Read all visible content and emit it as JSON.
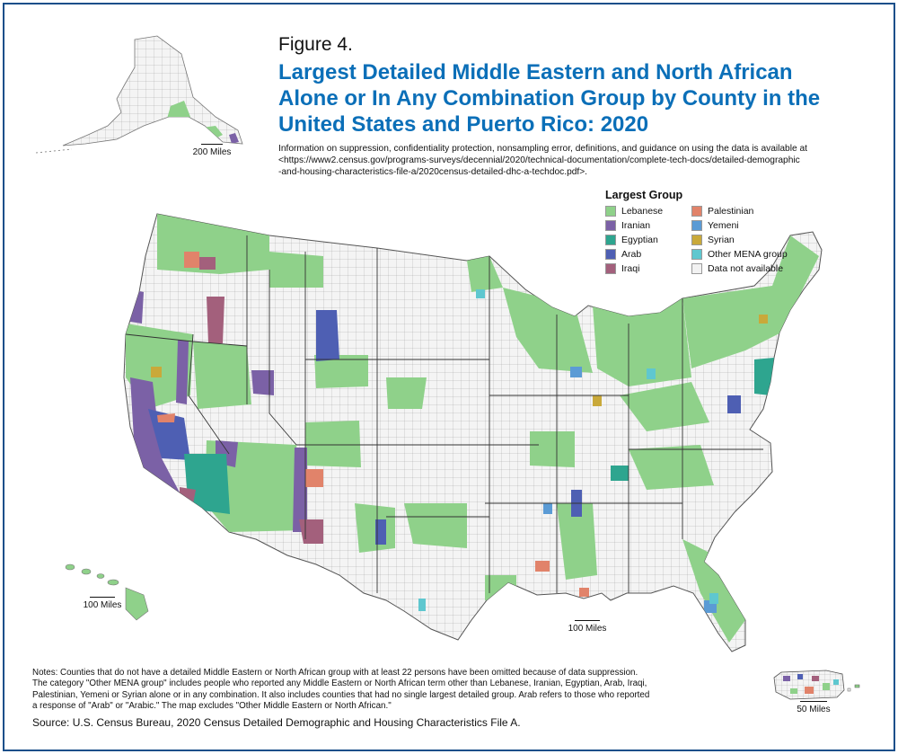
{
  "figure_label": "Figure 4.",
  "title_lines": [
    "Largest Detailed Middle Eastern and North African",
    "Alone or In Any Combination Group by County in the",
    "United States and Puerto Rico: 2020"
  ],
  "info_lines": [
    "Information on suppression, confidentiality protection, nonsampling error, definitions, and guidance on using the data is available at",
    "<https://www2.census.gov/programs-surveys/decennial/2020/technical-documentation/complete-tech-docs/detailed-demographic",
    "-and-housing-characteristics-file-a/2020census-detailed-dhc-a-techdoc.pdf>."
  ],
  "legend": {
    "title": "Largest Group",
    "items": [
      {
        "label": "Lebanese",
        "color": "#8fd18a"
      },
      {
        "label": "Palestinian",
        "color": "#e1836a"
      },
      {
        "label": "Iranian",
        "color": "#7b61a6"
      },
      {
        "label": "Yemeni",
        "color": "#5b9bd5"
      },
      {
        "label": "Egyptian",
        "color": "#2ea58f"
      },
      {
        "label": "Syrian",
        "color": "#c9a93a"
      },
      {
        "label": "Arab",
        "color": "#4e5fb3"
      },
      {
        "label": "Other MENA group",
        "color": "#5fc7cf"
      },
      {
        "label": "Iraqi",
        "color": "#a3607c"
      },
      {
        "label": "Data not available",
        "color": "#f2f2f2"
      }
    ]
  },
  "scales": {
    "alaska": "200 Miles",
    "hawaii": "100 Miles",
    "conus": "100 Miles",
    "puerto_rico": "50 Miles"
  },
  "notes_lines": [
    "Notes: Counties that do not have a detailed Middle Eastern or North African group with at least 22 persons have been omitted because of data suppression.",
    "The category \"Other MENA group\" includes people who reported any Middle Eastern or North African term other than Lebanese, Iranian, Egyptian, Arab, Iraqi,",
    "Palestinian, Yemeni or Syrian alone or in any combination. It also includes counties that had no single largest detailed group. Arab refers to those who reported",
    "a response of \"Arab\" or \"Arabic.\" The map excludes \"Other Middle Eastern or North African.\""
  ],
  "source": "Source: U.S. Census Bureau, 2020 Census Detailed Demographic and Housing Characteristics File A."
}
